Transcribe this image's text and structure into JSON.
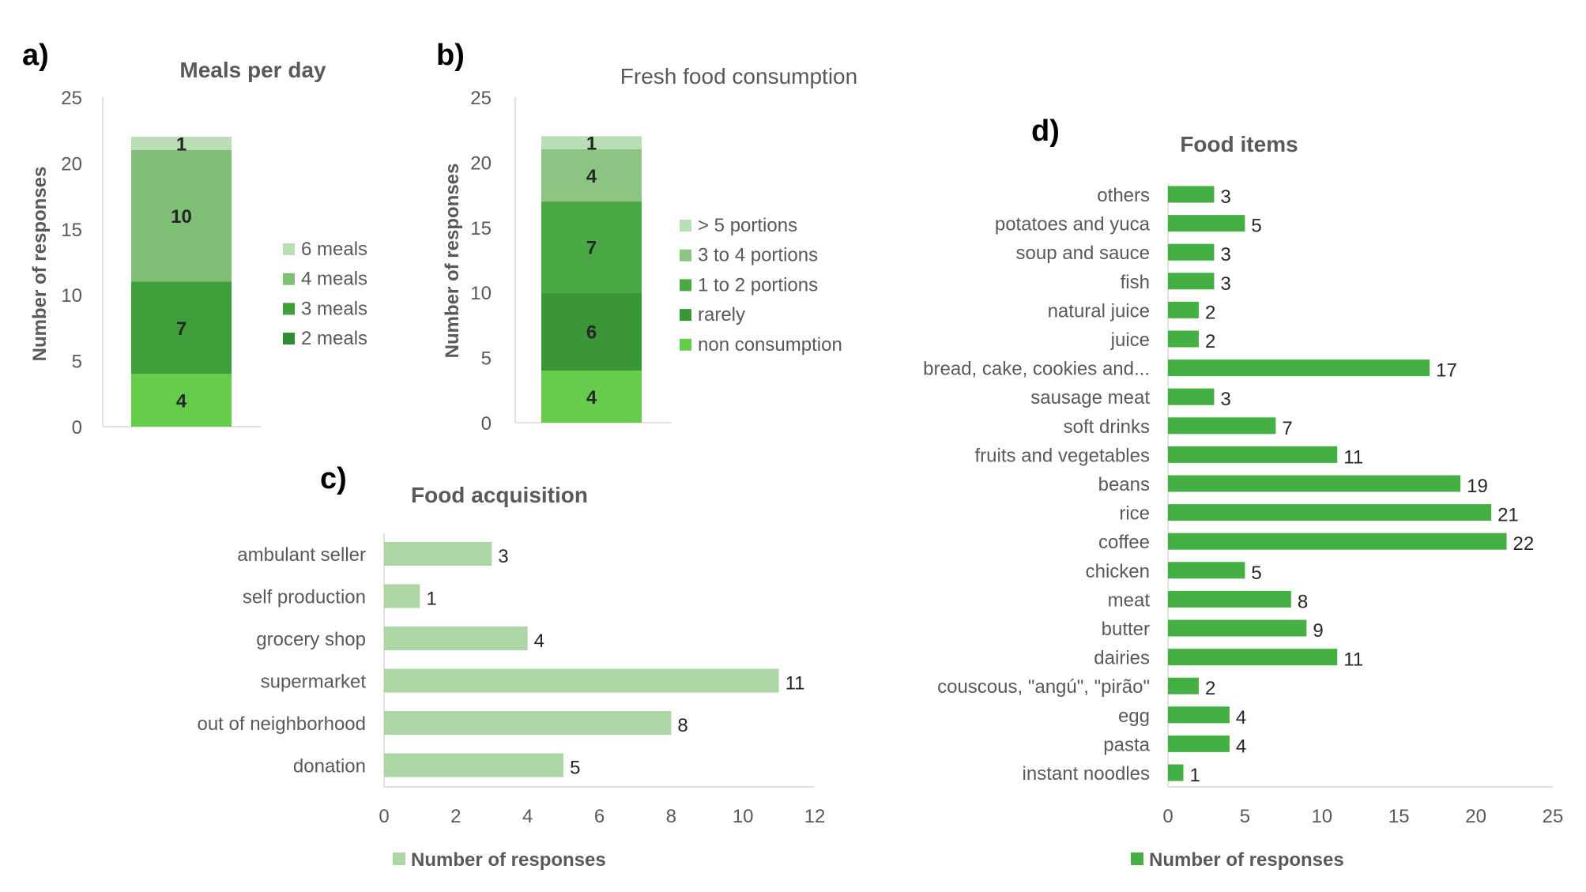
{
  "colors": {
    "six_meals": "#b9ddb4",
    "four_meals": "#7fbf76",
    "three_meals": "#3f9f3b",
    "two_meals": "#2f8a31",
    "gt5": "#b9ddb4",
    "p34": "#8cc583",
    "p12": "#4aa944",
    "rarely": "#3b9638",
    "non": "#66cc4c",
    "acquisition": "#acd6a4",
    "items": "#44b044",
    "axis": "#d9d9d9",
    "text": "#595959",
    "label": "#262626"
  },
  "chart_data": [
    {
      "panel": "a)",
      "type": "bar",
      "stacked": true,
      "title": "Meals per day",
      "xlabel": "",
      "ylabel": "Number of responses",
      "ylim": [
        0,
        25
      ],
      "yticks": [
        0,
        5,
        10,
        15,
        20,
        25
      ],
      "legend_position": "right",
      "series": [
        {
          "name": "2 meals",
          "value": 4,
          "color_key": "non"
        },
        {
          "name": "3 meals",
          "value": 7,
          "color_key": "three_meals"
        },
        {
          "name": "4 meals",
          "value": 10,
          "color_key": "four_meals"
        },
        {
          "name": "6 meals",
          "value": 1,
          "color_key": "six_meals"
        }
      ],
      "legend": [
        {
          "name": "6 meals",
          "color_key": "six_meals"
        },
        {
          "name": "4 meals",
          "color_key": "four_meals"
        },
        {
          "name": "3 meals",
          "color_key": "three_meals"
        },
        {
          "name": "2 meals",
          "color_key": "two_meals"
        }
      ]
    },
    {
      "panel": "b)",
      "type": "bar",
      "stacked": true,
      "title": "Fresh food consumption",
      "xlabel": "",
      "ylabel": "Number of responses",
      "ylim": [
        0,
        25
      ],
      "yticks": [
        0,
        5,
        10,
        15,
        20,
        25
      ],
      "legend_position": "right",
      "series": [
        {
          "name": "non consumption",
          "value": 4,
          "color_key": "non"
        },
        {
          "name": "rarely",
          "value": 6,
          "color_key": "rarely"
        },
        {
          "name": "1 to 2 portions",
          "value": 7,
          "color_key": "p12"
        },
        {
          "name": "3 to 4 portions",
          "value": 4,
          "color_key": "p34"
        },
        {
          "name": "> 5 portions",
          "value": 1,
          "color_key": "gt5"
        }
      ],
      "legend": [
        {
          "name": "> 5 portions",
          "color_key": "gt5"
        },
        {
          "name": "3 to 4 portions",
          "color_key": "p34"
        },
        {
          "name": "1 to 2 portions",
          "color_key": "p12"
        },
        {
          "name": "rarely",
          "color_key": "rarely"
        },
        {
          "name": "non consumption",
          "color_key": "non"
        }
      ]
    },
    {
      "panel": "c)",
      "type": "bar",
      "orientation": "horizontal",
      "title": "Food acquisition",
      "xlim": [
        0,
        12
      ],
      "xticks": [
        0,
        2,
        4,
        6,
        8,
        10,
        12
      ],
      "legend_position": "bottom",
      "legend": "Number of responses",
      "categories": [
        "ambulant seller",
        "self production",
        "grocery shop",
        "supermarket",
        "out of neighborhood",
        "donation"
      ],
      "values": [
        3,
        1,
        4,
        11,
        8,
        5
      ]
    },
    {
      "panel": "d)",
      "type": "bar",
      "orientation": "horizontal",
      "title": "Food items",
      "xlim": [
        0,
        25
      ],
      "xticks": [
        0,
        5,
        10,
        15,
        20,
        25
      ],
      "legend_position": "bottom",
      "legend": "Number of responses",
      "categories": [
        "others",
        "potatoes and yuca",
        "soup and sauce",
        "fish",
        "natural juice",
        "juice",
        "bread, cake, cookies and...",
        "sausage meat",
        "soft drinks",
        "fruits and vegetables",
        "beans",
        "rice",
        "coffee",
        "chicken",
        "meat",
        "butter",
        "dairies",
        "couscous, \"angú\", \"pirão\"",
        "egg",
        "pasta",
        "instant noodles"
      ],
      "values": [
        3,
        5,
        3,
        3,
        2,
        2,
        17,
        3,
        7,
        11,
        19,
        21,
        22,
        5,
        8,
        9,
        11,
        2,
        4,
        4,
        1
      ]
    }
  ]
}
